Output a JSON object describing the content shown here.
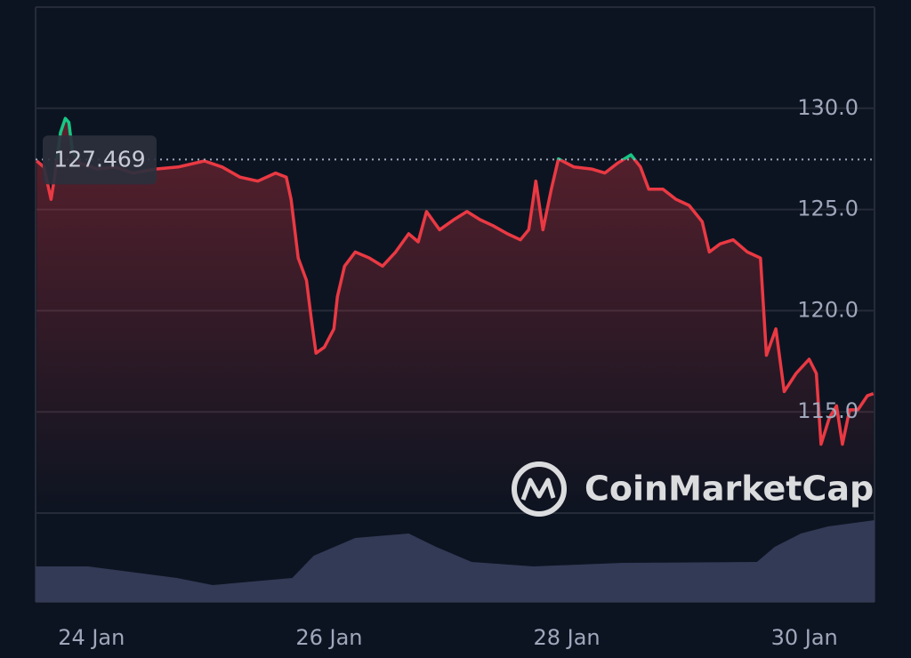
{
  "chart_data": {
    "type": "line",
    "x": [
      23.54,
      23.6,
      23.66,
      23.69,
      23.74,
      23.78,
      23.81,
      23.84,
      23.9,
      24.05,
      24.2,
      24.35,
      24.54,
      24.73,
      24.95,
      25.1,
      25.25,
      25.4,
      25.55,
      25.64,
      25.68,
      25.74,
      25.81,
      25.85,
      25.89,
      25.96,
      26.04,
      26.07,
      26.13,
      26.22,
      26.34,
      26.45,
      26.56,
      26.67,
      26.75,
      26.82,
      26.93,
      27.05,
      27.16,
      27.27,
      27.38,
      27.5,
      27.61,
      27.68,
      27.74,
      27.8,
      27.87,
      27.93,
      28.06,
      28.21,
      28.32,
      28.43,
      28.54,
      28.62,
      28.69,
      28.81,
      28.92,
      29.03,
      29.14,
      29.2,
      29.29,
      29.4,
      29.52,
      29.63,
      29.68,
      29.76,
      29.83,
      29.93,
      30.04,
      30.1,
      30.14,
      30.21,
      30.27,
      30.32,
      30.38,
      30.45,
      30.53,
      30.58
    ],
    "series": [
      {
        "color": "#ea3943",
        "color_above": "#16c784",
        "values": [
          127.4,
          127.1,
          125.5,
          126.6,
          128.8,
          129.5,
          129.3,
          127.9,
          127.3,
          127.0,
          127.1,
          126.8,
          127.0,
          127.1,
          127.4,
          127.1,
          126.6,
          126.4,
          126.8,
          126.6,
          125.5,
          122.6,
          121.5,
          119.6,
          117.9,
          118.2,
          119.1,
          120.7,
          122.2,
          122.9,
          122.6,
          122.2,
          122.9,
          123.8,
          123.4,
          124.9,
          124.0,
          124.5,
          124.9,
          124.5,
          124.2,
          123.8,
          123.5,
          124.0,
          126.4,
          124.0,
          126.0,
          127.5,
          127.1,
          127.0,
          126.8,
          127.3,
          127.7,
          127.1,
          126.0,
          126.0,
          125.5,
          125.2,
          124.4,
          122.9,
          123.3,
          123.5,
          122.9,
          122.6,
          117.8,
          119.1,
          116.0,
          116.9,
          117.6,
          116.9,
          113.4,
          114.7,
          115.3,
          113.4,
          115.1,
          115.1,
          115.8,
          115.9
        ]
      }
    ],
    "reference": 127.469,
    "xlim": [
      23.53,
      30.59
    ],
    "ylim": [
      110,
      135
    ],
    "yticks": [
      {
        "value": 115,
        "label": "115.0"
      },
      {
        "value": 120,
        "label": "120.0"
      },
      {
        "value": 125,
        "label": "125.0"
      },
      {
        "value": 130,
        "label": "130.0"
      }
    ],
    "xticks": [
      {
        "value": 24,
        "label": "24 Jan"
      },
      {
        "value": 26,
        "label": "26 Jan"
      },
      {
        "value": 28,
        "label": "28 Jan"
      },
      {
        "value": 30,
        "label": "30 Jan"
      }
    ],
    "grid": true,
    "volume": {
      "color": "#323a56",
      "x": [
        23.53,
        23.97,
        24.72,
        25.02,
        25.69,
        25.87,
        26.22,
        26.67,
        26.9,
        27.2,
        27.72,
        28.47,
        29.6,
        29.75,
        29.97,
        30.2,
        30.59
      ],
      "values": [
        40,
        40,
        27,
        19,
        27,
        52,
        72,
        77,
        62,
        45,
        40,
        44,
        45,
        62,
        77,
        85,
        92
      ],
      "ylim": [
        0,
        100
      ]
    },
    "watermark": "CoinMarketCap"
  }
}
